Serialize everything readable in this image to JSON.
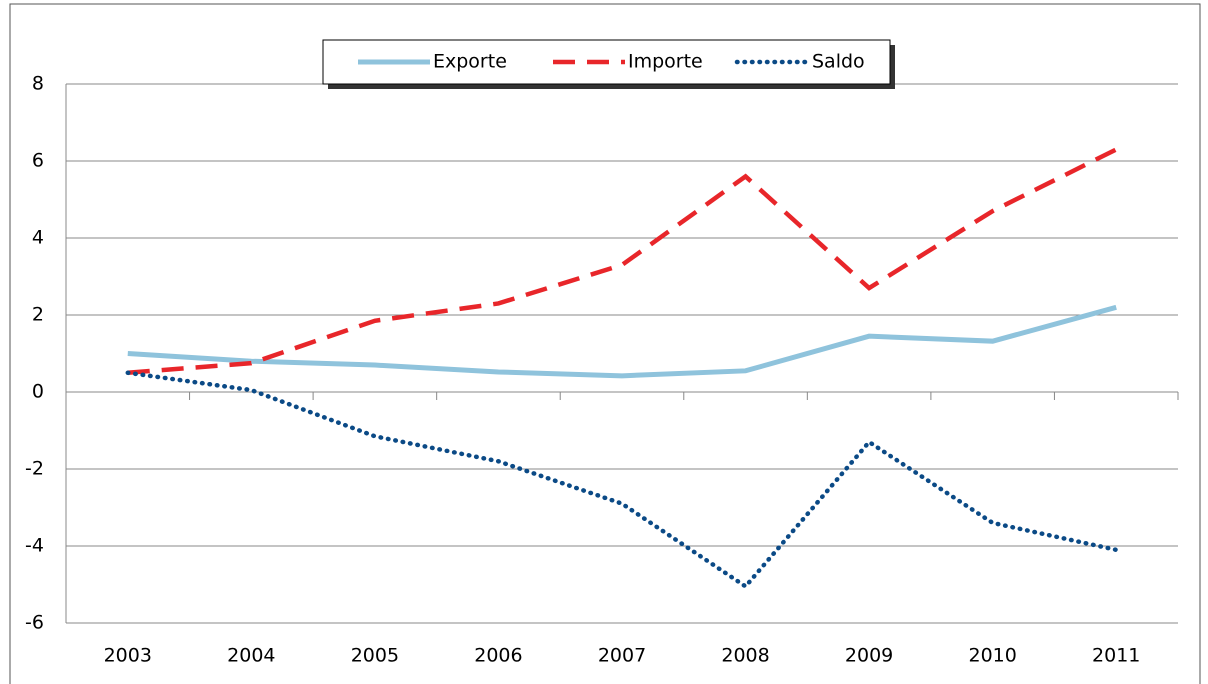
{
  "chart_data": {
    "type": "line",
    "categories": [
      "2003",
      "2004",
      "2005",
      "2006",
      "2007",
      "2008",
      "2009",
      "2010",
      "2011"
    ],
    "series": [
      {
        "name": "Exporte",
        "color": "#8fc3dc",
        "style": "solid",
        "values": [
          1.0,
          0.8,
          0.7,
          0.52,
          0.42,
          0.55,
          1.45,
          1.32,
          2.2
        ]
      },
      {
        "name": "Importe",
        "color": "#e8262a",
        "style": "dashed",
        "values": [
          0.5,
          0.75,
          1.85,
          2.3,
          3.3,
          5.6,
          2.7,
          4.7,
          6.3
        ]
      },
      {
        "name": "Saldo",
        "color": "#0b4a86",
        "style": "dotted",
        "values": [
          0.5,
          0.05,
          -1.15,
          -1.8,
          -2.9,
          -5.05,
          -1.3,
          -3.4,
          -4.1
        ]
      }
    ],
    "ylim": [
      -6,
      8
    ],
    "yticks": [
      -6,
      -4,
      -2,
      0,
      2,
      4,
      6,
      8
    ],
    "grid": true,
    "legend": "top"
  }
}
